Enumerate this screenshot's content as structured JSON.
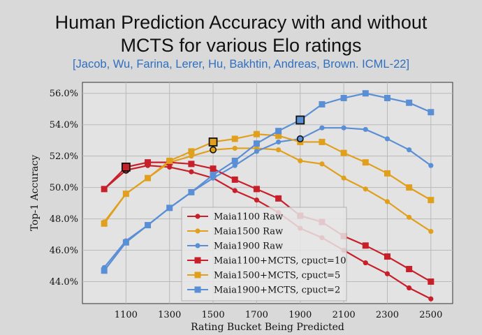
{
  "slide": {
    "title_line1": "Human Prediction Accuracy with and without",
    "title_line2": "MCTS for various Elo ratings",
    "citation": "[Jacob, Wu, Farina, Lerer, Hu, Bakhtin, Andreas, Brown. ICML-22]"
  },
  "chart_data": {
    "type": "line",
    "title": "",
    "xlabel": "Rating Bucket Being Predicted",
    "ylabel": "Top-1 Accuracy",
    "xlim": [
      900,
      2600
    ],
    "ylim": [
      42.6,
      56.7
    ],
    "xticks": [
      1100,
      1300,
      1500,
      1700,
      1900,
      2100,
      2300,
      2500
    ],
    "yticks": [
      44,
      46,
      48,
      50,
      52,
      54,
      56
    ],
    "ytick_labels": [
      "44.0%",
      "46.0%",
      "48.0%",
      "50.0%",
      "52.0%",
      "54.0%",
      "56.0%"
    ],
    "grid": true,
    "legend_position": "lower-center",
    "x": [
      1000,
      1100,
      1200,
      1300,
      1400,
      1500,
      1600,
      1700,
      1800,
      1900,
      2000,
      2100,
      2200,
      2300,
      2400,
      2500
    ],
    "series": [
      {
        "name": "Maia1100 Raw",
        "marker": "circle",
        "color": "#c8202a",
        "values": [
          49.9,
          51.1,
          51.4,
          51.3,
          51.0,
          50.6,
          49.8,
          49.2,
          48.4,
          47.4,
          46.8,
          46.0,
          45.2,
          44.5,
          43.6,
          42.9
        ],
        "highlight_x": 1100
      },
      {
        "name": "Maia1500 Raw",
        "marker": "circle",
        "color": "#e0a01e",
        "values": [
          47.8,
          49.6,
          50.6,
          51.6,
          52.0,
          52.4,
          52.5,
          52.5,
          52.4,
          51.7,
          51.5,
          50.6,
          49.9,
          49.1,
          48.1,
          47.2
        ],
        "highlight_x": 1500
      },
      {
        "name": "Maia1900 Raw",
        "marker": "circle",
        "color": "#5a8fd6",
        "values": [
          44.9,
          46.6,
          47.6,
          48.7,
          49.7,
          50.6,
          51.4,
          52.3,
          52.9,
          53.1,
          53.8,
          53.8,
          53.7,
          53.1,
          52.4,
          51.4
        ],
        "highlight_x": 1900
      },
      {
        "name": "Maia1100+MCTS, cpuct=10",
        "marker": "square",
        "color": "#c8202a",
        "values": [
          49.9,
          51.3,
          51.6,
          51.6,
          51.5,
          51.2,
          50.5,
          49.9,
          49.3,
          48.2,
          47.8,
          46.9,
          46.3,
          45.6,
          44.8,
          44.0
        ],
        "highlight_x": 1100
      },
      {
        "name": "Maia1500+MCTS, cpuct=5",
        "marker": "square",
        "color": "#e0a01e",
        "values": [
          47.7,
          49.6,
          50.6,
          51.7,
          52.3,
          52.9,
          53.1,
          53.4,
          53.3,
          52.9,
          52.9,
          52.2,
          51.6,
          50.9,
          50.0,
          49.2
        ],
        "highlight_x": 1500
      },
      {
        "name": "Maia1900+MCTS, cpuct=2",
        "marker": "square",
        "color": "#5a8fd6",
        "values": [
          44.7,
          46.5,
          47.6,
          48.7,
          49.7,
          50.8,
          51.7,
          52.8,
          53.6,
          54.3,
          55.3,
          55.7,
          56.0,
          55.7,
          55.4,
          54.8
        ],
        "highlight_x": 1900
      }
    ]
  }
}
